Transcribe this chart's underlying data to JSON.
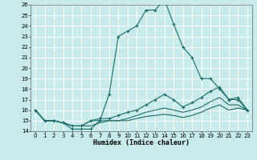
{
  "xlabel": "Humidex (Indice chaleur)",
  "ylabel": "",
  "xlim": [
    -0.5,
    23.5
  ],
  "ylim": [
    14,
    26
  ],
  "yticks": [
    14,
    15,
    16,
    17,
    18,
    19,
    20,
    21,
    22,
    23,
    24,
    25,
    26
  ],
  "xticks": [
    0,
    1,
    2,
    3,
    4,
    5,
    6,
    7,
    8,
    9,
    10,
    11,
    12,
    13,
    14,
    15,
    16,
    17,
    18,
    19,
    20,
    21,
    22,
    23
  ],
  "bg_color": "#c8eaea",
  "grid_color": "#ffffff",
  "line_color": "#1a6b6b",
  "lines": [
    {
      "x": [
        0,
        1,
        2,
        3,
        4,
        5,
        6,
        7,
        8,
        9,
        10,
        11,
        12,
        13,
        14,
        15,
        16,
        17,
        18,
        19,
        20,
        21,
        22,
        23
      ],
      "y": [
        16,
        15,
        15,
        14.8,
        14.2,
        14.2,
        14.2,
        15,
        17.5,
        23,
        23.5,
        24,
        25.5,
        25.5,
        26.5,
        24.2,
        22,
        21,
        19,
        19,
        18,
        17,
        17,
        16
      ],
      "marker": "+"
    },
    {
      "x": [
        0,
        1,
        2,
        3,
        4,
        5,
        6,
        7,
        8,
        9,
        10,
        11,
        12,
        13,
        14,
        15,
        16,
        17,
        18,
        19,
        20,
        21,
        22,
        23
      ],
      "y": [
        16,
        15,
        15,
        14.8,
        14.5,
        14.5,
        15,
        15.2,
        15.2,
        15.5,
        15.8,
        16,
        16.5,
        17,
        17.5,
        17,
        16.3,
        16.7,
        17.2,
        17.8,
        18.2,
        17,
        17.2,
        16
      ],
      "marker": "+"
    },
    {
      "x": [
        0,
        1,
        2,
        3,
        4,
        5,
        6,
        7,
        8,
        9,
        10,
        11,
        12,
        13,
        14,
        15,
        16,
        17,
        18,
        19,
        20,
        21,
        22,
        23
      ],
      "y": [
        16,
        15,
        15,
        14.8,
        14.5,
        14.5,
        15,
        15,
        15,
        15,
        15.2,
        15.5,
        15.8,
        16,
        16.2,
        16,
        15.8,
        16,
        16.3,
        16.8,
        17.2,
        16.5,
        16.5,
        16
      ],
      "marker": null
    },
    {
      "x": [
        0,
        1,
        2,
        3,
        4,
        5,
        6,
        7,
        8,
        9,
        10,
        11,
        12,
        13,
        14,
        15,
        16,
        17,
        18,
        19,
        20,
        21,
        22,
        23
      ],
      "y": [
        16,
        15,
        15,
        14.8,
        14.5,
        14.5,
        14.5,
        14.8,
        15,
        15,
        15,
        15.2,
        15.4,
        15.5,
        15.6,
        15.5,
        15.3,
        15.5,
        15.8,
        16.2,
        16.5,
        16,
        16.2,
        16
      ],
      "marker": null
    }
  ]
}
